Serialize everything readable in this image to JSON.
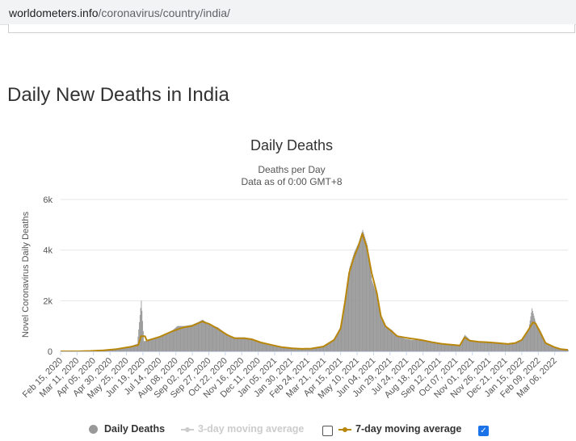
{
  "browser": {
    "url_host": "worldometers.info",
    "url_path": "/coronavirus/country/india/"
  },
  "page": {
    "heading": "Daily New Deaths in India"
  },
  "colors": {
    "bars": "#999999",
    "ma7": "#b8860b",
    "ma3_disabled": "#cccccc",
    "grid": "#e6e6e6",
    "checkbox_checked": "#1a73e8"
  },
  "legend": {
    "daily_deaths": "Daily Deaths",
    "ma3": "3-day moving average",
    "ma3_checked": false,
    "ma7": "7-day moving average",
    "ma7_checked": true
  },
  "chart_data": {
    "type": "bar",
    "title": "Daily Deaths",
    "subtitle_line1": "Deaths per Day",
    "subtitle_line2": "Data as of 0:00 GMT+8",
    "ylabel": "Novel Coronavirus Daily Deaths",
    "xlabel": "",
    "ylim": [
      0,
      6000
    ],
    "yticks": [
      0,
      2000,
      4000,
      6000
    ],
    "ytick_labels": [
      "0",
      "2k",
      "4k",
      "6k"
    ],
    "grid": true,
    "legend_position": "bottom-center",
    "x_start": "2020-02-15",
    "x_end": "2022-03-26",
    "x_tick_labels": [
      "Feb 15, 2020",
      "Mar 11, 2020",
      "Apr 05, 2020",
      "Apr 30, 2020",
      "May 25, 2020",
      "Jun 19, 2020",
      "Jul 14, 2020",
      "Aug 08, 2020",
      "Sep 02, 2020",
      "Sep 27, 2020",
      "Oct 22, 2020",
      "Nov 16, 2020",
      "Dec 11, 2020",
      "Jan 05, 2021",
      "Jan 30, 2021",
      "Feb 24, 2021",
      "Mar 21, 2021",
      "Apr 15, 2021",
      "May 10, 2021",
      "Jun 04, 2021",
      "Jun 29, 2021",
      "Jul 24, 2021",
      "Aug 18, 2021",
      "Sep 12, 2021",
      "Oct 07, 2021",
      "Nov 01, 2021",
      "Nov 26, 2021",
      "Dec 21, 2021",
      "Jan 15, 2022",
      "Feb 09, 2022",
      "Mar 06, 2022"
    ],
    "series": [
      {
        "name": "Daily Deaths",
        "style": "bar",
        "points": [
          [
            "2020-02-15",
            0
          ],
          [
            "2020-03-15",
            2
          ],
          [
            "2020-04-01",
            20
          ],
          [
            "2020-04-20",
            45
          ],
          [
            "2020-05-10",
            100
          ],
          [
            "2020-05-31",
            200
          ],
          [
            "2020-06-10",
            300
          ],
          [
            "2020-06-16",
            2000
          ],
          [
            "2020-06-20",
            400
          ],
          [
            "2020-07-01",
            450
          ],
          [
            "2020-07-15",
            600
          ],
          [
            "2020-08-01",
            800
          ],
          [
            "2020-08-10",
            1000
          ],
          [
            "2020-08-20",
            1000
          ],
          [
            "2020-09-01",
            1050
          ],
          [
            "2020-09-10",
            1150
          ],
          [
            "2020-09-17",
            1250
          ],
          [
            "2020-09-28",
            1050
          ],
          [
            "2020-10-10",
            950
          ],
          [
            "2020-10-25",
            650
          ],
          [
            "2020-11-05",
            550
          ],
          [
            "2020-11-20",
            550
          ],
          [
            "2020-12-01",
            500
          ],
          [
            "2020-12-15",
            350
          ],
          [
            "2021-01-01",
            250
          ],
          [
            "2021-01-15",
            180
          ],
          [
            "2021-02-01",
            120
          ],
          [
            "2021-02-15",
            100
          ],
          [
            "2021-03-01",
            120
          ],
          [
            "2021-03-20",
            200
          ],
          [
            "2021-04-05",
            500
          ],
          [
            "2021-04-15",
            1000
          ],
          [
            "2021-04-22",
            2200
          ],
          [
            "2021-04-28",
            3300
          ],
          [
            "2021-05-05",
            3900
          ],
          [
            "2021-05-12",
            4300
          ],
          [
            "2021-05-18",
            4800
          ],
          [
            "2021-05-25",
            4200
          ],
          [
            "2021-06-01",
            2800
          ],
          [
            "2021-06-09",
            2200
          ],
          [
            "2021-06-15",
            1300
          ],
          [
            "2021-06-22",
            1000
          ],
          [
            "2021-07-01",
            850
          ],
          [
            "2021-07-10",
            600
          ],
          [
            "2021-07-21",
            500
          ],
          [
            "2021-08-01",
            450
          ],
          [
            "2021-08-15",
            450
          ],
          [
            "2021-09-01",
            380
          ],
          [
            "2021-09-15",
            300
          ],
          [
            "2021-10-01",
            280
          ],
          [
            "2021-10-13",
            250
          ],
          [
            "2021-10-20",
            650
          ],
          [
            "2021-10-28",
            450
          ],
          [
            "2021-11-10",
            400
          ],
          [
            "2021-11-25",
            380
          ],
          [
            "2021-12-10",
            350
          ],
          [
            "2021-12-25",
            300
          ],
          [
            "2022-01-05",
            350
          ],
          [
            "2022-01-15",
            450
          ],
          [
            "2022-01-25",
            900
          ],
          [
            "2022-01-30",
            1700
          ],
          [
            "2022-02-05",
            1100
          ],
          [
            "2022-02-12",
            800
          ],
          [
            "2022-02-20",
            350
          ],
          [
            "2022-03-05",
            180
          ],
          [
            "2022-03-15",
            80
          ],
          [
            "2022-03-26",
            50
          ]
        ]
      },
      {
        "name": "7-day moving average",
        "style": "line",
        "points": [
          [
            "2020-02-15",
            0
          ],
          [
            "2020-03-15",
            2
          ],
          [
            "2020-04-01",
            15
          ],
          [
            "2020-04-20",
            40
          ],
          [
            "2020-05-10",
            90
          ],
          [
            "2020-05-31",
            180
          ],
          [
            "2020-06-12",
            250
          ],
          [
            "2020-06-16",
            600
          ],
          [
            "2020-06-22",
            600
          ],
          [
            "2020-06-25",
            420
          ],
          [
            "2020-07-15",
            580
          ],
          [
            "2020-08-01",
            780
          ],
          [
            "2020-08-20",
            950
          ],
          [
            "2020-09-01",
            1000
          ],
          [
            "2020-09-10",
            1100
          ],
          [
            "2020-09-17",
            1180
          ],
          [
            "2020-09-28",
            1080
          ],
          [
            "2020-10-10",
            900
          ],
          [
            "2020-10-25",
            650
          ],
          [
            "2020-11-05",
            520
          ],
          [
            "2020-11-20",
            520
          ],
          [
            "2020-12-01",
            480
          ],
          [
            "2020-12-15",
            350
          ],
          [
            "2021-01-01",
            250
          ],
          [
            "2021-01-15",
            170
          ],
          [
            "2021-02-01",
            120
          ],
          [
            "2021-02-15",
            100
          ],
          [
            "2021-03-01",
            110
          ],
          [
            "2021-03-20",
            190
          ],
          [
            "2021-04-05",
            450
          ],
          [
            "2021-04-15",
            900
          ],
          [
            "2021-04-22",
            2000
          ],
          [
            "2021-04-28",
            3100
          ],
          [
            "2021-05-05",
            3700
          ],
          [
            "2021-05-12",
            4150
          ],
          [
            "2021-05-18",
            4650
          ],
          [
            "2021-05-25",
            4100
          ],
          [
            "2021-06-01",
            3100
          ],
          [
            "2021-06-09",
            2300
          ],
          [
            "2021-06-15",
            1400
          ],
          [
            "2021-06-22",
            1000
          ],
          [
            "2021-07-01",
            800
          ],
          [
            "2021-07-10",
            600
          ],
          [
            "2021-07-21",
            550
          ],
          [
            "2021-08-01",
            500
          ],
          [
            "2021-08-15",
            450
          ],
          [
            "2021-09-01",
            360
          ],
          [
            "2021-09-15",
            300
          ],
          [
            "2021-10-01",
            260
          ],
          [
            "2021-10-13",
            230
          ],
          [
            "2021-10-20",
            550
          ],
          [
            "2021-10-28",
            420
          ],
          [
            "2021-11-10",
            380
          ],
          [
            "2021-11-25",
            360
          ],
          [
            "2021-12-10",
            330
          ],
          [
            "2021-12-25",
            290
          ],
          [
            "2022-01-05",
            330
          ],
          [
            "2022-01-15",
            450
          ],
          [
            "2022-01-25",
            850
          ],
          [
            "2022-02-01",
            1150
          ],
          [
            "2022-02-05",
            1100
          ],
          [
            "2022-02-12",
            750
          ],
          [
            "2022-02-20",
            330
          ],
          [
            "2022-03-05",
            170
          ],
          [
            "2022-03-15",
            90
          ],
          [
            "2022-03-26",
            60
          ]
        ]
      }
    ]
  }
}
